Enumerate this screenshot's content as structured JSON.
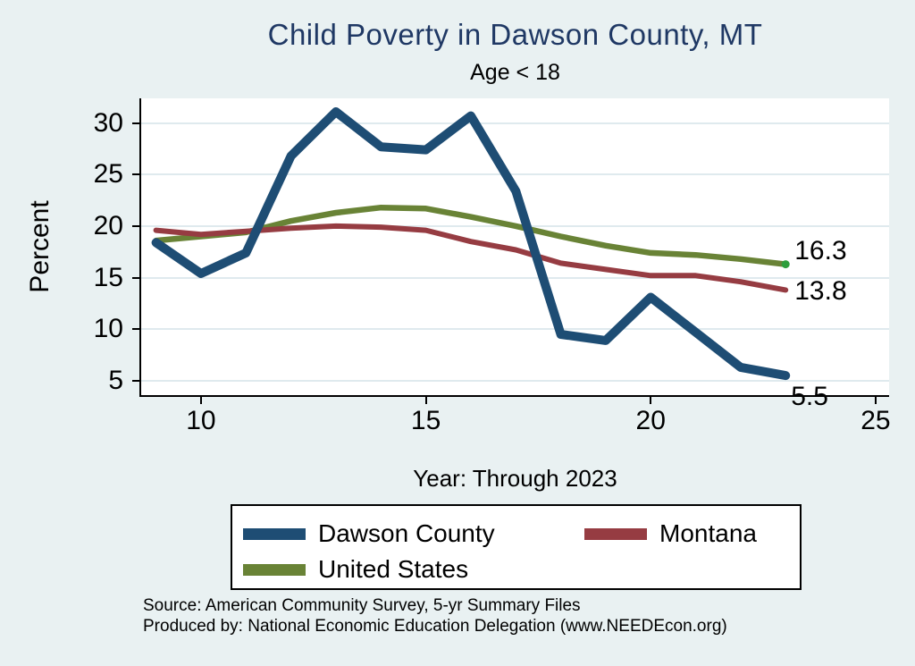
{
  "header": {
    "title": "Child Poverty in Dawson County, MT",
    "subtitle": "Age < 18"
  },
  "chart_data": {
    "type": "line",
    "title": "Child Poverty in Dawson County, MT",
    "subtitle": "Age < 18",
    "xlabel": "Year: Through 2023",
    "ylabel": "Percent",
    "x": [
      9,
      10,
      11,
      12,
      13,
      14,
      15,
      16,
      17,
      18,
      19,
      20,
      21,
      22,
      23
    ],
    "series": [
      {
        "name": "Dawson County",
        "color": "#1e4d74",
        "line_width": 10,
        "values": [
          18.4,
          15.4,
          17.4,
          26.8,
          31.1,
          27.7,
          27.4,
          30.7,
          23.4,
          9.5,
          8.9,
          13.1,
          9.7,
          6.3,
          5.5
        ],
        "end_label": "5.5"
      },
      {
        "name": "Montana",
        "color": "#963c42",
        "line_width": 6,
        "values": [
          19.6,
          19.2,
          19.5,
          19.8,
          20.0,
          19.9,
          19.6,
          18.5,
          17.7,
          16.4,
          15.8,
          15.2,
          15.2,
          14.6,
          13.8
        ],
        "end_label": "13.8"
      },
      {
        "name": "United States",
        "color": "#698336",
        "line_width": 6.5,
        "values": [
          18.6,
          19.0,
          19.4,
          20.5,
          21.3,
          21.8,
          21.7,
          20.9,
          20.0,
          19.0,
          18.1,
          17.4,
          17.2,
          16.8,
          16.3
        ],
        "end_label": "16.3",
        "end_marker": true,
        "end_marker_color": "#2e9e3c"
      }
    ],
    "xticks": [
      10,
      15,
      20,
      25
    ],
    "yticks": [
      30,
      25,
      20,
      15,
      10,
      5
    ],
    "xlim": [
      8.67,
      25.3
    ],
    "ylim": [
      3.6,
      32.4
    ],
    "grid": true,
    "legend_position": "bottom"
  },
  "end_labels": {
    "us": "16.3",
    "montana": "13.8",
    "dawson": "5.5"
  },
  "legend": {
    "items": [
      {
        "label": "Dawson County",
        "color": "#1e4d74"
      },
      {
        "label": "Montana",
        "color": "#963c42"
      },
      {
        "label": "United States",
        "color": "#698336"
      }
    ]
  },
  "footer": {
    "source_line1": "Source: American Community Survey, 5-yr Summary Files",
    "source_line2": "Produced by: National Economic Education Delegation (www.NEEDEcon.org)"
  },
  "colors": {
    "background": "#e9f1f2",
    "plot_background": "#ffffff",
    "gridline": "#dfeaee",
    "title": "#1f3864",
    "axis": "#000000"
  }
}
